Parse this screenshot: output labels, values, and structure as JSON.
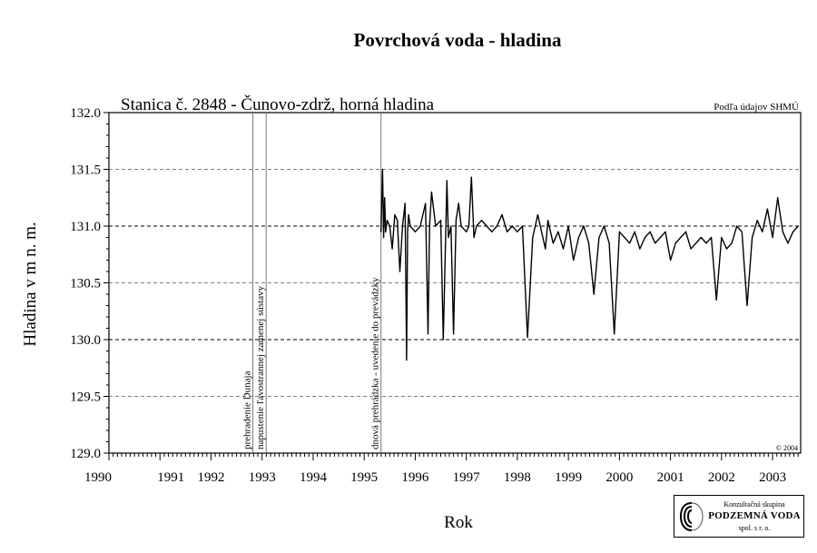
{
  "chart_data": {
    "type": "line",
    "title": "Povrchová voda - hladina",
    "subtitle": "Stanica č. 2848 - Čunovo-zdrž, horná hladina",
    "source_note": "Podľa údajov SHMÚ",
    "copyright": "© 2004",
    "xlabel": "Rok",
    "ylabel": "Hladina v m n. m.",
    "xlim": [
      1990.0,
      2003.55
    ],
    "ylim": [
      129.0,
      132.0
    ],
    "y_ticks": [
      "129.0",
      "129.5",
      "130.0",
      "130.5",
      "131.0",
      "131.5",
      "132.0"
    ],
    "x_tick_labels": [
      {
        "year": 1990,
        "label": "1990"
      },
      {
        "year": 1991,
        "label": "1991"
      },
      {
        "year": 1992,
        "label": "1992"
      },
      {
        "year": 1993,
        "label": "1993"
      },
      {
        "year": 1994,
        "label": "1994"
      },
      {
        "year": 1995,
        "label": "1995"
      },
      {
        "year": 1996,
        "label": "1996"
      },
      {
        "year": 1997,
        "label": "1997"
      },
      {
        "year": 1998,
        "label": "1998"
      },
      {
        "year": 1999,
        "label": "1999"
      },
      {
        "year": 2000,
        "label": "2000"
      },
      {
        "year": 2001,
        "label": "2001"
      },
      {
        "year": 2002,
        "label": "2002"
      },
      {
        "year": 2003,
        "label": "2003"
      }
    ],
    "grid": "horizontal dashed",
    "events": [
      {
        "year": 1992.82,
        "label": "prehradenie Dunaja"
      },
      {
        "year": 1993.08,
        "label": "napustenie ľavostrannej zamenej sústavy"
      },
      {
        "year": 1995.33,
        "label": "dnová prehrádzka - uvedenie do prevádzky"
      }
    ],
    "series": [
      {
        "x": [
          1995.33,
          1995.36,
          1995.38,
          1995.4,
          1995.42,
          1995.45,
          1995.5,
          1995.55,
          1995.6,
          1995.65,
          1995.7,
          1995.75,
          1995.8,
          1995.83,
          1995.85,
          1995.87,
          1995.9,
          1996.0,
          1996.1,
          1996.2,
          1996.25,
          1996.28,
          1996.32,
          1996.4,
          1996.5,
          1996.55,
          1996.6,
          1996.62,
          1996.65,
          1996.7,
          1996.75,
          1996.8,
          1996.85,
          1996.9,
          1997.0,
          1997.05,
          1997.1,
          1997.15,
          1997.2,
          1997.3,
          1997.4,
          1997.5,
          1997.6,
          1997.7,
          1997.8,
          1997.9,
          1998.0,
          1998.1,
          1998.2,
          1998.3,
          1998.4,
          1998.5,
          1998.55,
          1998.58,
          1998.6,
          1998.7,
          1998.8,
          1998.9,
          1999.0,
          1999.1,
          1999.2,
          1999.3,
          1999.4,
          1999.5,
          1999.6,
          1999.7,
          1999.8,
          1999.9,
          2000.0,
          2000.1,
          2000.2,
          2000.3,
          2000.4,
          2000.5,
          2000.6,
          2000.7,
          2000.8,
          2000.9,
          2001.0,
          2001.1,
          2001.2,
          2001.3,
          2001.4,
          2001.5,
          2001.6,
          2001.7,
          2001.8,
          2001.9,
          2002.0,
          2002.1,
          2002.2,
          2002.3,
          2002.4,
          2002.5,
          2002.6,
          2002.7,
          2002.8,
          2002.9,
          2003.0,
          2003.1,
          2003.2,
          2003.3,
          2003.4,
          2003.5
        ],
        "values": [
          130.95,
          131.5,
          130.9,
          131.25,
          130.95,
          131.05,
          131.0,
          130.8,
          131.1,
          131.05,
          130.6,
          131.0,
          131.2,
          129.82,
          130.95,
          131.1,
          131.0,
          130.95,
          131.0,
          131.2,
          130.05,
          131.0,
          131.3,
          131.0,
          131.05,
          130.0,
          131.0,
          131.4,
          130.9,
          131.0,
          130.05,
          131.05,
          131.2,
          131.0,
          130.95,
          131.0,
          131.43,
          130.9,
          131.0,
          131.05,
          131.0,
          130.95,
          131.0,
          131.1,
          130.95,
          131.0,
          130.95,
          131.0,
          130.02,
          130.9,
          131.1,
          130.9,
          130.8,
          130.95,
          131.05,
          130.85,
          130.95,
          130.8,
          131.0,
          130.7,
          130.9,
          131.0,
          130.85,
          130.4,
          130.9,
          131.0,
          130.85,
          130.05,
          130.95,
          130.9,
          130.85,
          130.95,
          130.8,
          130.9,
          130.95,
          130.85,
          130.9,
          130.95,
          130.7,
          130.85,
          130.9,
          130.95,
          130.8,
          130.85,
          130.9,
          130.85,
          130.9,
          130.35,
          130.9,
          130.8,
          130.85,
          131.0,
          130.95,
          130.3,
          130.9,
          131.05,
          130.95,
          131.15,
          130.9,
          131.25,
          130.95,
          130.85,
          130.95,
          131.0
        ]
      }
    ]
  },
  "logo": {
    "line1": "Konzultačná skupina",
    "line2": "PODZEMNÁ VODA",
    "line3": "spol. s r. o."
  }
}
